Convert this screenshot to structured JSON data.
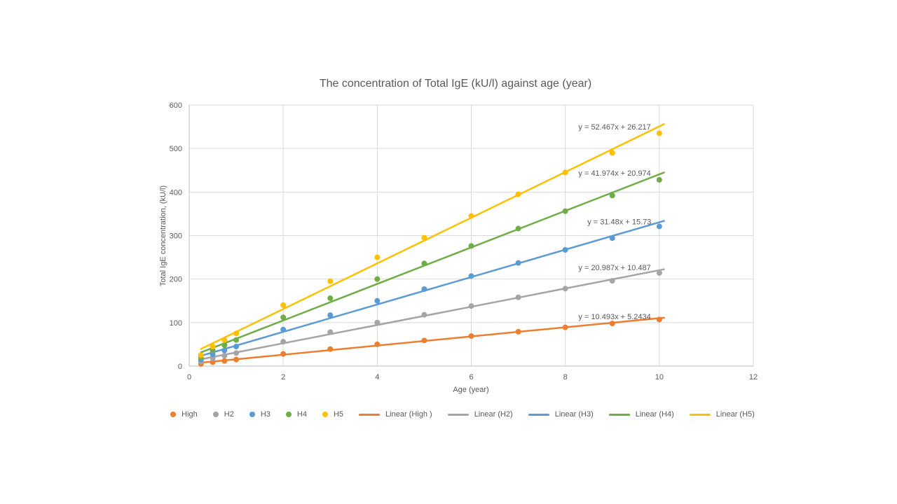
{
  "chart_data": {
    "type": "scatter",
    "title": "The concentration of Total IgE (kU/l) against age (year)",
    "xlabel": "Age (year)",
    "ylabel": "Total IgE concentration, (kU/l)",
    "xlim": [
      0,
      12
    ],
    "ylim": [
      0,
      600
    ],
    "x_ticks": [
      0,
      2,
      4,
      6,
      8,
      10,
      12
    ],
    "y_ticks": [
      0,
      100,
      200,
      300,
      400,
      500,
      600
    ],
    "grid": true,
    "legend_position": "bottom",
    "trendline_x_range": [
      0.25,
      10.1
    ],
    "x": [
      0.25,
      0.5,
      0.75,
      1,
      2,
      3,
      4,
      5,
      6,
      7,
      8,
      9,
      10
    ],
    "series": [
      {
        "name": "High",
        "color": "#ED7D31",
        "values": [
          5,
          9,
          12,
          15,
          28,
          39,
          50,
          59,
          69,
          79,
          89,
          98,
          107
        ],
        "legend_point_label": "High",
        "legend_line_label": "Linear (High )",
        "trendline": {
          "equation": "y = 10.493x + 5.2434",
          "slope": 10.493,
          "intercept": 5.2434,
          "label_x": 9.05,
          "label_y": 114
        }
      },
      {
        "name": "H2",
        "color": "#A5A5A5",
        "values": [
          10,
          18,
          24,
          30,
          56,
          78,
          100,
          118,
          138,
          158,
          178,
          196,
          214
        ],
        "legend_point_label": "H2",
        "legend_line_label": "Linear (H2)",
        "trendline": {
          "equation": "y = 20.987x + 10.487",
          "slope": 20.987,
          "intercept": 10.487,
          "label_x": 9.05,
          "label_y": 227
        }
      },
      {
        "name": "H3",
        "color": "#5B9BD5",
        "values": [
          15,
          27,
          36,
          45,
          84,
          117,
          150,
          177,
          207,
          237,
          267,
          294,
          321
        ],
        "legend_point_label": "H3",
        "legend_line_label": "Linear (H3)",
        "trendline": {
          "equation": "y = 31.48x + 15.73",
          "slope": 31.48,
          "intercept": 15.73,
          "label_x": 9.15,
          "label_y": 332
        }
      },
      {
        "name": "H4",
        "color": "#70AD47",
        "values": [
          20,
          36,
          48,
          60,
          112,
          156,
          200,
          236,
          276,
          316,
          356,
          392,
          428
        ],
        "legend_point_label": "H4",
        "legend_line_label": "Linear (H4)",
        "trendline": {
          "equation": "y = 41.974x + 20.974",
          "slope": 41.974,
          "intercept": 20.974,
          "label_x": 9.05,
          "label_y": 444
        }
      },
      {
        "name": "H5",
        "color": "#FFC000",
        "values": [
          25,
          45,
          60,
          75,
          140,
          195,
          250,
          295,
          345,
          395,
          445,
          490,
          535
        ],
        "legend_point_label": "H5",
        "legend_line_label": "Linear (H5)",
        "trendline": {
          "equation": "y = 52.467x + 26.217",
          "slope": 52.467,
          "intercept": 26.217,
          "label_x": 9.05,
          "label_y": 550
        }
      }
    ],
    "colors": {
      "text": "#595959",
      "gridline": "#D9D9D9",
      "axis_line": "#BFBFBF",
      "background": "#FFFFFF"
    }
  }
}
